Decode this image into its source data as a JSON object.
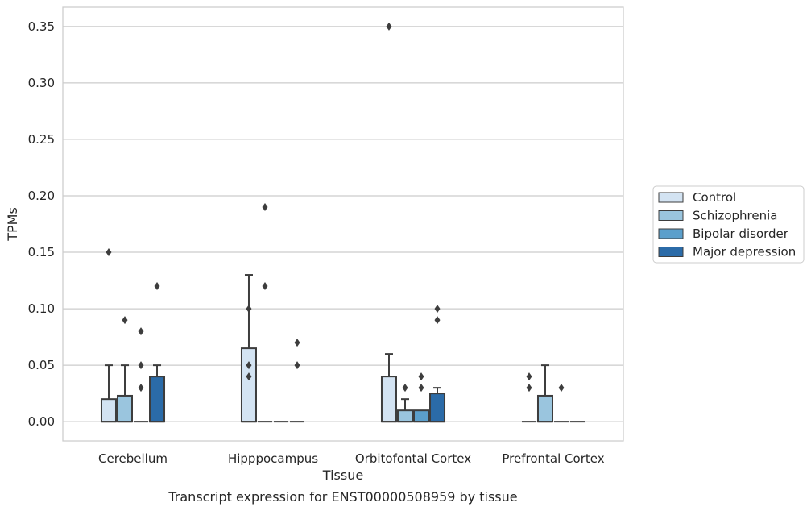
{
  "chart_data": {
    "type": "box",
    "xlabel": "Tissue",
    "ylabel": "TPMs",
    "caption": "Transcript expression for ENST00000508959 by tissue",
    "categories": [
      "Cerebellum",
      "Hipppocampus",
      "Orbitofontal Cortex",
      "Prefrontal Cortex"
    ],
    "ylim": [
      -0.017,
      0.367
    ],
    "yticks": [
      0.0,
      0.05,
      0.1,
      0.15,
      0.2,
      0.25,
      0.3,
      0.35
    ],
    "ytick_labels": [
      "0.00",
      "0.05",
      "0.10",
      "0.15",
      "0.20",
      "0.25",
      "0.30",
      "0.35"
    ],
    "grid": true,
    "legend_position": "right",
    "series": [
      {
        "name": "Control",
        "color": "#d3e3f2",
        "boxes": [
          {
            "q1": 0.0,
            "median": 0.0,
            "q3": 0.02,
            "whisker_low": 0.0,
            "whisker_high": 0.05,
            "outliers": [
              0.15
            ]
          },
          {
            "q1": 0.0,
            "median": 0.0,
            "q3": 0.065,
            "whisker_low": 0.0,
            "whisker_high": 0.13,
            "outliers": [
              0.1,
              0.05,
              0.04
            ]
          },
          {
            "q1": 0.0,
            "median": 0.0,
            "q3": 0.04,
            "whisker_low": 0.0,
            "whisker_high": 0.06,
            "outliers": [
              0.35
            ]
          },
          {
            "q1": 0.0,
            "median": 0.0,
            "q3": 0.0,
            "whisker_low": 0.0,
            "whisker_high": 0.0,
            "outliers": [
              0.04,
              0.03
            ]
          }
        ]
      },
      {
        "name": "Schizophrenia",
        "color": "#9ac5de",
        "boxes": [
          {
            "q1": 0.0,
            "median": 0.0,
            "q3": 0.023,
            "whisker_low": 0.0,
            "whisker_high": 0.05,
            "outliers": [
              0.09
            ]
          },
          {
            "q1": 0.0,
            "median": 0.0,
            "q3": 0.0,
            "whisker_low": 0.0,
            "whisker_high": 0.0,
            "outliers": [
              0.19,
              0.12
            ]
          },
          {
            "q1": 0.0,
            "median": 0.0,
            "q3": 0.01,
            "whisker_low": 0.0,
            "whisker_high": 0.02,
            "outliers": [
              0.03
            ]
          },
          {
            "q1": 0.0,
            "median": 0.0,
            "q3": 0.023,
            "whisker_low": 0.0,
            "whisker_high": 0.05,
            "outliers": []
          }
        ]
      },
      {
        "name": "Bipolar disorder",
        "color": "#5b9fcb",
        "boxes": [
          {
            "q1": 0.0,
            "median": 0.0,
            "q3": 0.0,
            "whisker_low": 0.0,
            "whisker_high": 0.0,
            "outliers": [
              0.08,
              0.05,
              0.03
            ]
          },
          {
            "q1": 0.0,
            "median": 0.0,
            "q3": 0.0,
            "whisker_low": 0.0,
            "whisker_high": 0.0,
            "outliers": []
          },
          {
            "q1": 0.0,
            "median": 0.0,
            "q3": 0.01,
            "whisker_low": 0.0,
            "whisker_high": 0.01,
            "outliers": [
              0.04,
              0.03
            ]
          },
          {
            "q1": 0.0,
            "median": 0.0,
            "q3": 0.0,
            "whisker_low": 0.0,
            "whisker_high": 0.0,
            "outliers": [
              0.03
            ]
          }
        ]
      },
      {
        "name": "Major depression",
        "color": "#2b6ba8",
        "boxes": [
          {
            "q1": 0.0,
            "median": 0.0,
            "q3": 0.04,
            "whisker_low": 0.0,
            "whisker_high": 0.05,
            "outliers": [
              0.12
            ]
          },
          {
            "q1": 0.0,
            "median": 0.0,
            "q3": 0.0,
            "whisker_low": 0.0,
            "whisker_high": 0.0,
            "outliers": [
              0.07,
              0.05
            ]
          },
          {
            "q1": 0.0,
            "median": 0.0,
            "q3": 0.025,
            "whisker_low": 0.0,
            "whisker_high": 0.03,
            "outliers": [
              0.1,
              0.09
            ]
          },
          {
            "q1": 0.0,
            "median": 0.0,
            "q3": 0.0,
            "whisker_low": 0.0,
            "whisker_high": 0.0,
            "outliers": []
          }
        ]
      }
    ]
  }
}
